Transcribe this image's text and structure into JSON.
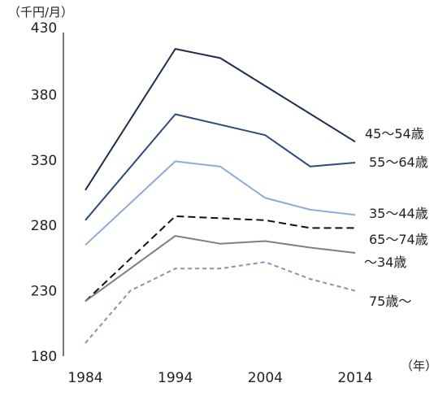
{
  "chart_data": {
    "type": "line",
    "y_unit_label": "（千円/月）",
    "x_unit_label": "（年）",
    "ylim": [
      180,
      430
    ],
    "yticks": [
      "430",
      "380",
      "330",
      "280",
      "230",
      "180"
    ],
    "x_tick_labels": [
      "1984",
      "1994",
      "2004",
      "2014"
    ],
    "x": [
      1984,
      1989,
      1994,
      1999,
      2004,
      2009,
      2014
    ],
    "grid": false,
    "legend": "inline-right",
    "series": [
      {
        "name": "45〜54歳",
        "color": "#1f2d4d",
        "dash": "solid",
        "values": [
          307,
          null,
          415,
          408,
          null,
          null,
          344
        ]
      },
      {
        "name": "55〜64歳",
        "color": "#2e4a7a",
        "dash": "solid",
        "values": [
          284,
          null,
          365,
          null,
          349,
          325,
          328
        ]
      },
      {
        "name": "35〜44歳",
        "color": "#8eaad8",
        "dash": "solid",
        "values": [
          265,
          null,
          329,
          325,
          301,
          292,
          288
        ]
      },
      {
        "name": "65〜74歳",
        "color": "#111111",
        "dash": "longdash",
        "values": [
          222,
          null,
          287,
          null,
          284,
          278,
          278
        ]
      },
      {
        "name": "〜34歳",
        "color": "#7f7f7f",
        "dash": "solid",
        "values": [
          222,
          null,
          272,
          266,
          268,
          263,
          259
        ]
      },
      {
        "name": "75歳〜",
        "color": "#7f95b8",
        "dash": "shortdash",
        "values": [
          190,
          230,
          247,
          247,
          252,
          239,
          230
        ]
      }
    ]
  }
}
